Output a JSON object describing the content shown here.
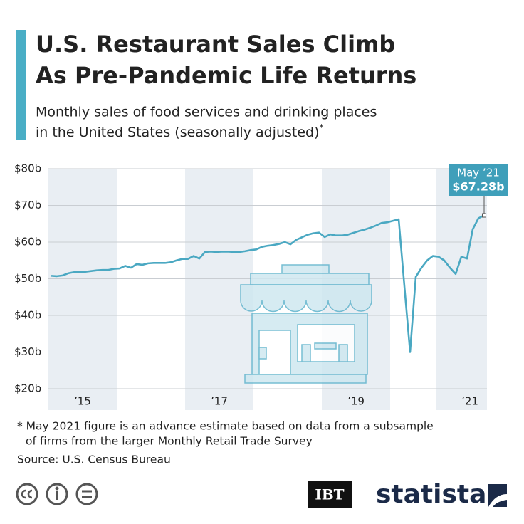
{
  "chart_data": {
    "type": "line",
    "title": [
      "U.S. Restaurant Sales Climb",
      "As Pre-Pandemic Life Returns"
    ],
    "subtitle": [
      "Monthly sales of food services and drinking places",
      "in the United States (seasonally adjusted)"
    ],
    "subtitle_mark": "*",
    "categories": [
      null,
      null,
      null,
      null,
      null,
      null,
      "’15",
      null,
      null,
      null,
      null,
      null,
      null,
      null,
      null,
      null,
      null,
      null,
      null,
      null,
      null,
      null,
      null,
      null,
      null,
      null,
      null,
      null,
      null,
      null,
      "’17",
      null,
      null,
      null,
      null,
      null,
      null,
      null,
      null,
      null,
      null,
      null,
      null,
      null,
      null,
      null,
      null,
      null,
      null,
      null,
      null,
      null,
      null,
      null,
      "’19",
      null,
      null,
      null,
      null,
      null,
      null,
      null,
      null,
      null,
      null,
      null,
      null,
      null,
      null,
      null,
      null,
      null,
      null,
      null,
      "’21",
      null,
      null
    ],
    "series": [
      {
        "name": "Monthly sales",
        "color": "#4aa8c2",
        "values": [
          50.8,
          50.7,
          50.9,
          51.5,
          51.8,
          51.8,
          51.9,
          52.1,
          52.3,
          52.4,
          52.4,
          52.7,
          52.8,
          53.5,
          53.0,
          54.0,
          53.8,
          54.2,
          54.3,
          54.3,
          54.3,
          54.5,
          55.0,
          55.4,
          55.4,
          56.2,
          55.5,
          57.3,
          57.4,
          57.3,
          57.4,
          57.4,
          57.3,
          57.3,
          57.5,
          57.8,
          58.0,
          58.7,
          59.0,
          59.2,
          59.5,
          60.0,
          59.4,
          60.6,
          61.3,
          62.0,
          62.4,
          62.6,
          61.4,
          62.1,
          61.8,
          61.8,
          62.0,
          62.5,
          63.0,
          63.4,
          63.9,
          64.5,
          65.2,
          65.4,
          65.8,
          66.2,
          48.0,
          30.0,
          50.5,
          53.0,
          55.0,
          56.2,
          56.0,
          55.0,
          53.0,
          51.3,
          56.0,
          55.5,
          63.5,
          66.5,
          67.28
        ],
        "value_labels": [
          null,
          null,
          null,
          null,
          null,
          null,
          null,
          null,
          null,
          null,
          null,
          null,
          null,
          null,
          null,
          null,
          null,
          null,
          null,
          null,
          null,
          null,
          null,
          null,
          null,
          null,
          null,
          null,
          null,
          null,
          null,
          null,
          null,
          null,
          null,
          null,
          null,
          null,
          null,
          null,
          null,
          null,
          null,
          null,
          null,
          null,
          null,
          null,
          null,
          null,
          null,
          null,
          null,
          null,
          null,
          null,
          null,
          null,
          null,
          null,
          null,
          null,
          null,
          null,
          null,
          null,
          null,
          null,
          null,
          null,
          null,
          null,
          null,
          null,
          null,
          null,
          "$67.28b"
        ]
      }
    ],
    "annotation": "May ’21",
    "ylim": [
      20,
      80
    ],
    "yticks": [
      {
        "value": 20,
        "label": "$20b"
      },
      {
        "value": 30,
        "label": "$30b"
      },
      {
        "value": 40,
        "label": "$40b"
      },
      {
        "value": 50,
        "label": "$50b"
      },
      {
        "value": 60,
        "label": "$60b"
      },
      {
        "value": 70,
        "label": "$70b"
      },
      {
        "value": 80,
        "label": "$80b"
      }
    ],
    "grid": true,
    "note": [
      "* May 2021 figure is an advance estimate based on data from a subsample",
      "of firms from the larger Monthly Retail Trade Survey"
    ],
    "source": "Source: U.S. Census Bureau",
    "partner": "IBT",
    "brand": "statista"
  }
}
